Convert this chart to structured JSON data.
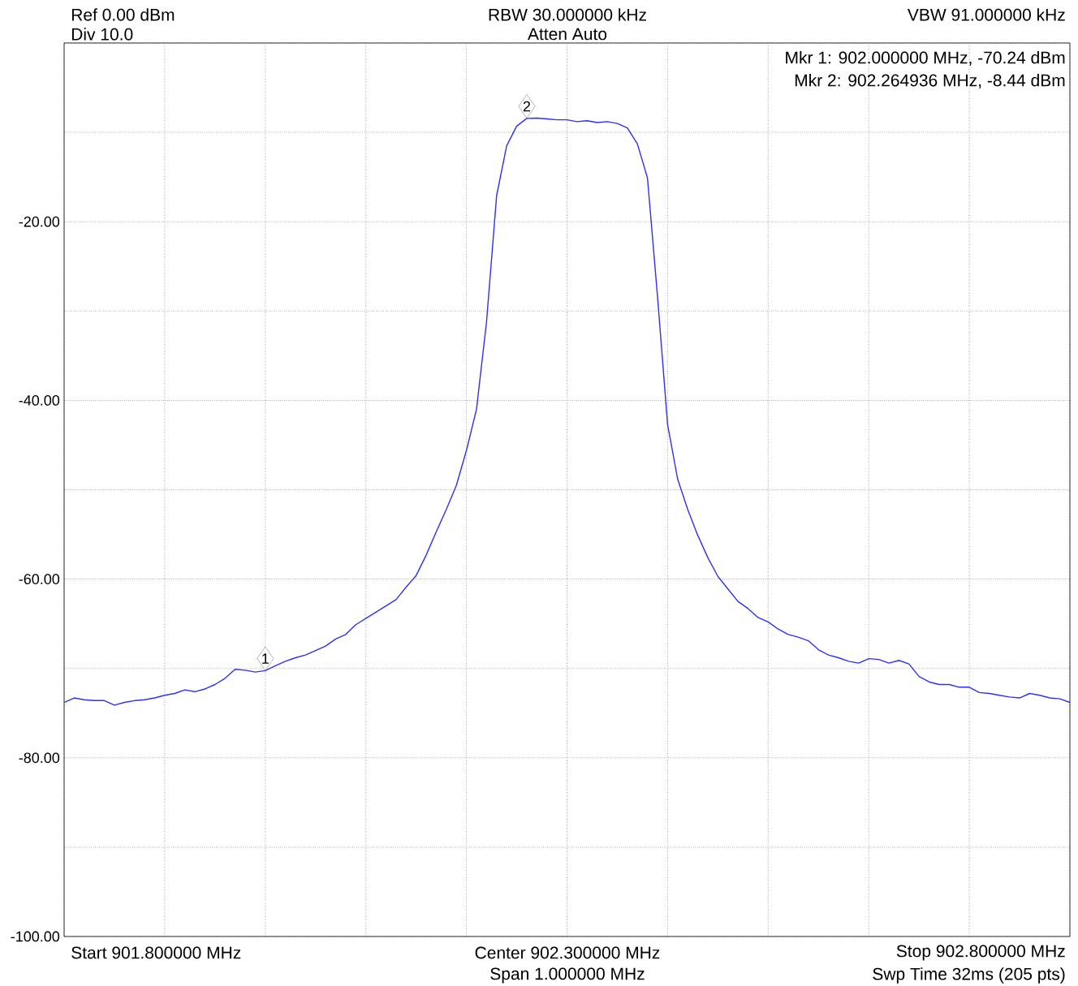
{
  "chart_data": {
    "type": "line",
    "categories": [
      null,
      null,
      null,
      null,
      null,
      null,
      null,
      null,
      null,
      null,
      null,
      null,
      null,
      null,
      null,
      null,
      null,
      null,
      null,
      null,
      null,
      null,
      null,
      null,
      null,
      null,
      null,
      null,
      null,
      null,
      null,
      null,
      null,
      null,
      null,
      null,
      null,
      null,
      null,
      null,
      null,
      null,
      null,
      null,
      null,
      null,
      null,
      null,
      null,
      null,
      null,
      null,
      null,
      null,
      null,
      null,
      null,
      null,
      null,
      null,
      null,
      null,
      null,
      null,
      null,
      null,
      null,
      null,
      null,
      null,
      null,
      null,
      null,
      null,
      null,
      null,
      null,
      null,
      null,
      null,
      null,
      null,
      null,
      null,
      null,
      null,
      null,
      null,
      null,
      null,
      null,
      null,
      null,
      null,
      null,
      null,
      null,
      null,
      null,
      null,
      null
    ],
    "ylim": [
      -100,
      0
    ],
    "yticks": [
      {
        "value": -100,
        "label": "-100.00"
      },
      {
        "value": -90,
        "label": null
      },
      {
        "value": -80,
        "label": "-80.00"
      },
      {
        "value": -70,
        "label": null
      },
      {
        "value": -60,
        "label": "-60.00"
      },
      {
        "value": -50,
        "label": null
      },
      {
        "value": -40,
        "label": "-40.00"
      },
      {
        "value": -30,
        "label": null
      },
      {
        "value": -20,
        "label": "-20.00"
      },
      {
        "value": -10,
        "label": null
      },
      {
        "value": 0,
        "label": null
      }
    ],
    "tick_labels": "y",
    "grid": true,
    "series": [
      {
        "color": "#3030f0",
        "values": [
          -73.8,
          -73.3,
          -73.5,
          -73.6,
          -73.6,
          -74.1,
          -73.8,
          -73.6,
          -73.5,
          -73.3,
          -73.0,
          -72.8,
          -72.4,
          -72.6,
          -72.3,
          -71.8,
          -71.1,
          -70.1,
          -70.2,
          -70.4,
          -70.24,
          -69.7,
          -69.2,
          -68.8,
          -68.5,
          -68.0,
          -67.5,
          -66.7,
          -66.2,
          -65.1,
          -64.4,
          -63.7,
          -63.0,
          -62.3,
          -60.9,
          -59.6,
          -57.3,
          -54.7,
          -52.2,
          -49.5,
          -45.6,
          -41.0,
          -31.2,
          -17.1,
          -11.5,
          -9.3,
          -8.44,
          -8.4,
          -8.5,
          -8.6,
          -8.6,
          -8.8,
          -8.7,
          -8.9,
          -8.8,
          -9.0,
          -9.5,
          -11.3,
          -15.1,
          -28.4,
          -42.7,
          -48.8,
          -52.2,
          -55.1,
          -57.6,
          -59.7,
          -61.1,
          -62.5,
          -63.3,
          -64.3,
          -64.8,
          -65.6,
          -66.2,
          -66.5,
          -66.9,
          -67.9,
          -68.5,
          -68.8,
          -69.2,
          -69.4,
          -68.9,
          -69.0,
          -69.4,
          -69.1,
          -69.5,
          -70.9,
          -71.5,
          -71.8,
          -71.8,
          -72.1,
          -72.1,
          -72.7,
          -72.8,
          -73.0,
          -73.2,
          -73.3,
          -72.8,
          -73.0,
          -73.3,
          -73.4,
          -73.8
        ]
      }
    ],
    "annotations": [
      "Ref 0.00 dBm",
      "Div 10.0",
      "RBW 30.000000 kHz",
      "Atten Auto",
      "VBW 91.000000 kHz",
      "Mkr 1: 902.000000 MHz, -70.24 dBm",
      "Mkr 2: 902.264936 MHz, -8.44 dBm",
      "Start 901.800000 MHz",
      "Center 902.300000 MHz",
      "Span 1.000000 MHz",
      "Stop 902.800000 MHz",
      "Swp Time 32ms (205 pts)",
      {
        "text": "1",
        "y": -70.24
      },
      {
        "text": "2",
        "y": -8.44
      }
    ]
  }
}
